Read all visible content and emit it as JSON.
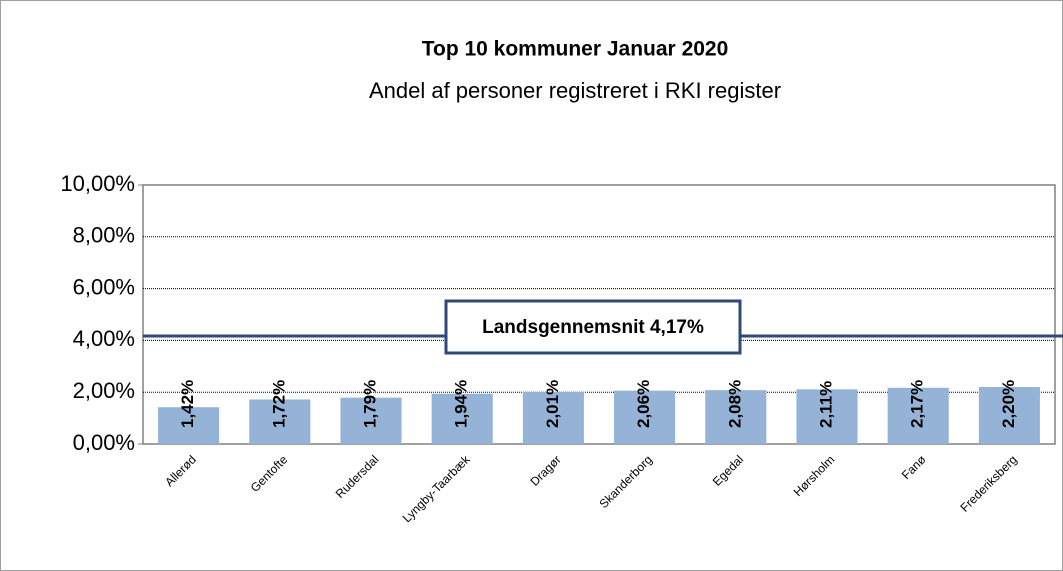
{
  "chart_data": {
    "type": "bar",
    "title": "Top 10 kommuner Januar 2020",
    "subtitle": "Andel af personer registreret i RKI register",
    "categories": [
      "Allerød",
      "Gentofte",
      "Rudersdal",
      "Lyngby-Taarbæk",
      "Dragør",
      "Skanderborg",
      "Egedal",
      "Hørsholm",
      "Fanø",
      "Frederiksberg"
    ],
    "values": [
      1.42,
      1.72,
      1.79,
      1.94,
      2.01,
      2.06,
      2.08,
      2.11,
      2.17,
      2.2
    ],
    "value_labels": [
      "1,42%",
      "1,72%",
      "1,79%",
      "1,94%",
      "2,01%",
      "2,06%",
      "2,08%",
      "2,11%",
      "2,17%",
      "2,20%"
    ],
    "color": "#95b3d7",
    "ylim": [
      0,
      10
    ],
    "yticks": [
      {
        "value": 0,
        "label": "0,00%"
      },
      {
        "value": 2,
        "label": "2,00%"
      },
      {
        "value": 4,
        "label": "4,00%"
      },
      {
        "value": 6,
        "label": "6,00%"
      },
      {
        "value": 8,
        "label": "8,00%"
      },
      {
        "value": 10,
        "label": "10,00%"
      }
    ],
    "grid": true,
    "reference_line": {
      "value": 4.17,
      "label": "Landsgennemsnit 4,17%",
      "color": "#2f4a7a"
    }
  }
}
